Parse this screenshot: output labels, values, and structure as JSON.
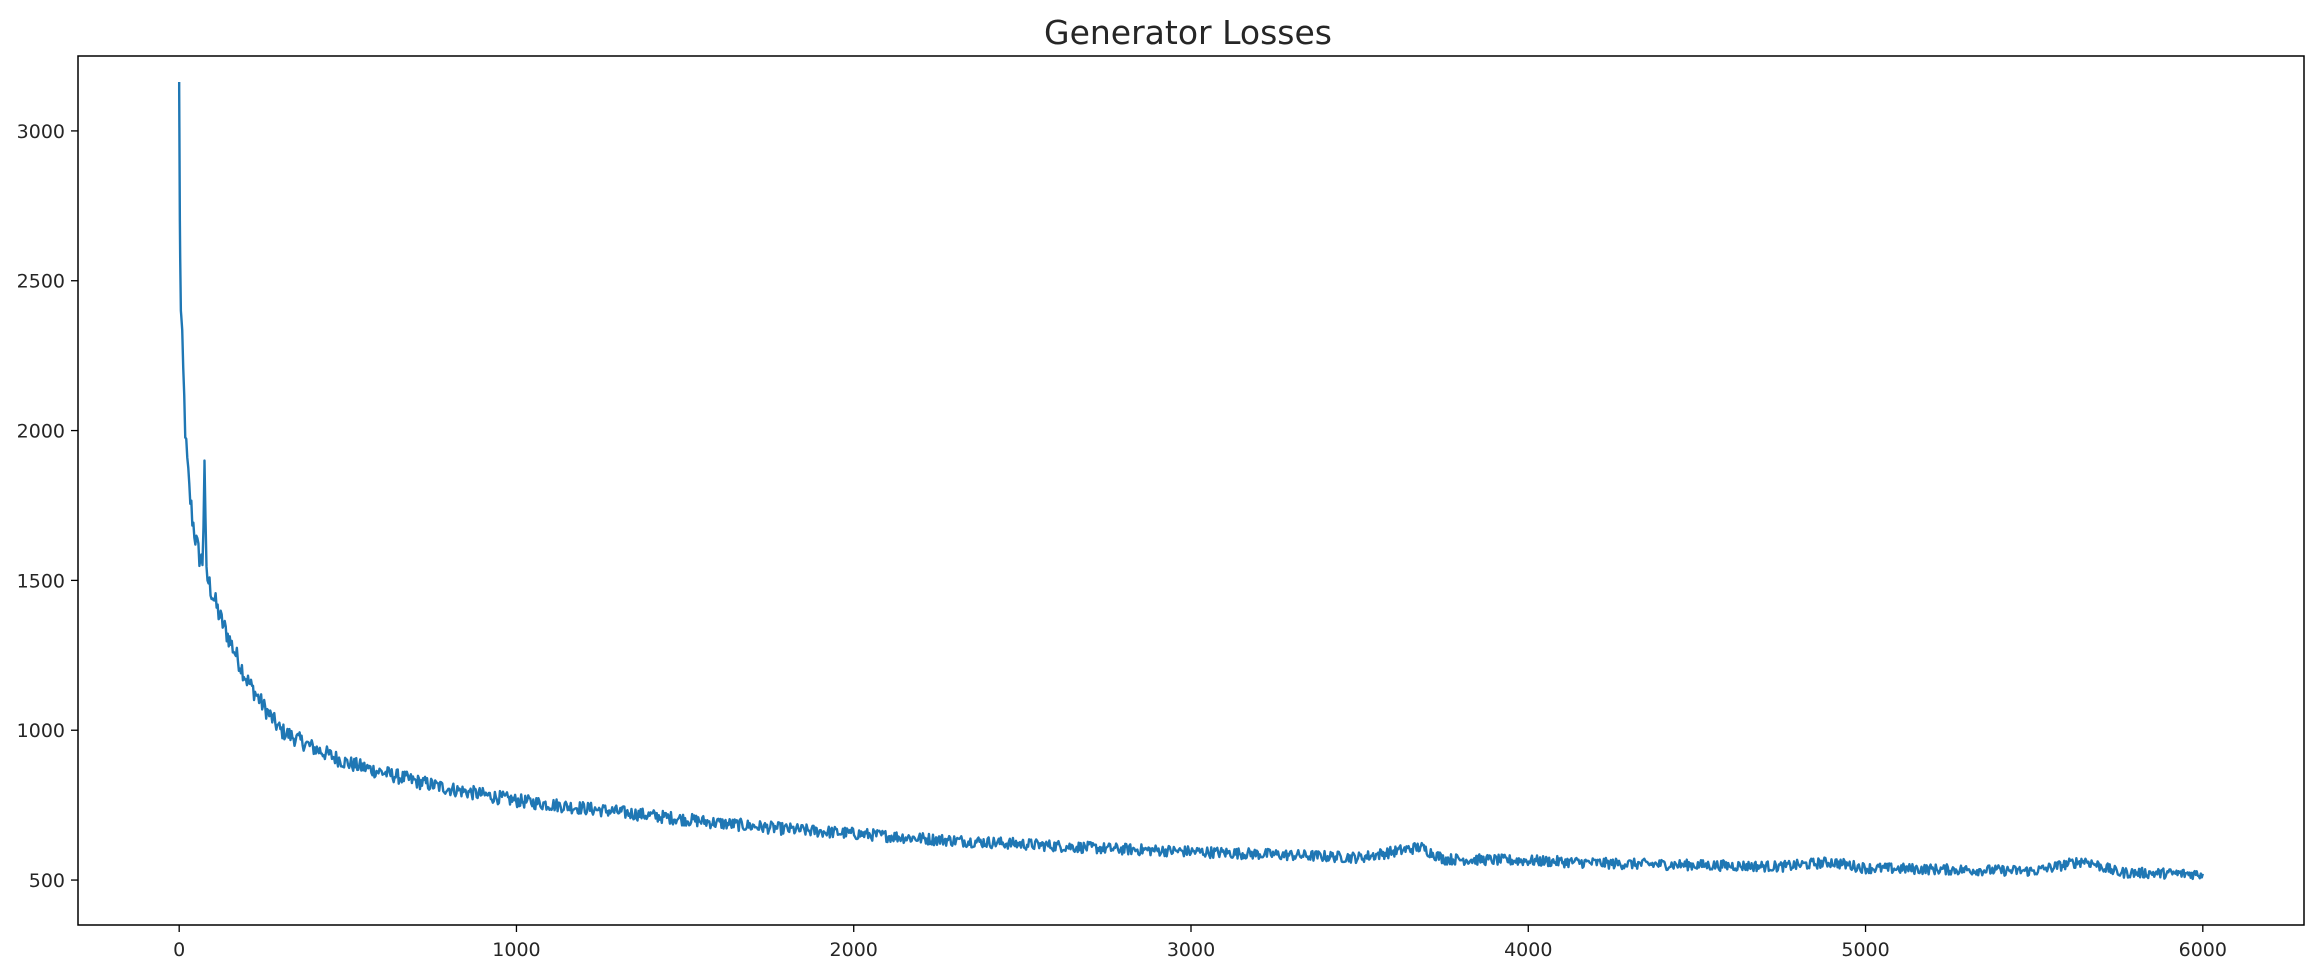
{
  "chart_data": {
    "type": "line",
    "title": "Generator Losses",
    "xlabel": "",
    "ylabel": "",
    "xlim": [
      -300,
      6300
    ],
    "ylim": [
      350,
      3250
    ],
    "xticks": [
      0,
      1000,
      2000,
      3000,
      4000,
      5000,
      6000
    ],
    "yticks": [
      500,
      1000,
      1500,
      2000,
      2500,
      3000
    ],
    "xtick_labels": [
      "0",
      "1000",
      "2000",
      "3000",
      "4000",
      "5000",
      "6000"
    ],
    "ytick_labels": [
      "500",
      "1000",
      "1500",
      "2000",
      "2500",
      "3000"
    ],
    "grid": false,
    "legend": "none",
    "color": "#1f77b4",
    "series": [
      {
        "x": [
          0,
          2,
          5,
          10,
          15,
          20,
          30,
          40,
          50,
          60,
          70,
          75,
          80,
          100,
          120,
          150,
          200,
          250,
          300,
          400,
          500,
          600,
          700,
          800,
          900,
          1000,
          1200,
          1400,
          1600,
          1800,
          2000,
          2250,
          2500,
          2750,
          3000,
          3250,
          3500,
          3680,
          3750,
          4000,
          4250,
          4500,
          4750,
          4900,
          5000,
          5250,
          5500,
          5650,
          5750,
          6000
        ],
        "y": [
          3140,
          2700,
          2400,
          2250,
          2100,
          1950,
          1800,
          1700,
          1630,
          1580,
          1560,
          1900,
          1520,
          1450,
          1380,
          1300,
          1170,
          1080,
          1000,
          940,
          890,
          860,
          830,
          805,
          785,
          765,
          740,
          715,
          690,
          670,
          655,
          635,
          620,
          605,
          595,
          585,
          575,
          610,
          570,
          565,
          555,
          550,
          545,
          560,
          540,
          535,
          530,
          565,
          525,
          520
        ]
      }
    ]
  }
}
